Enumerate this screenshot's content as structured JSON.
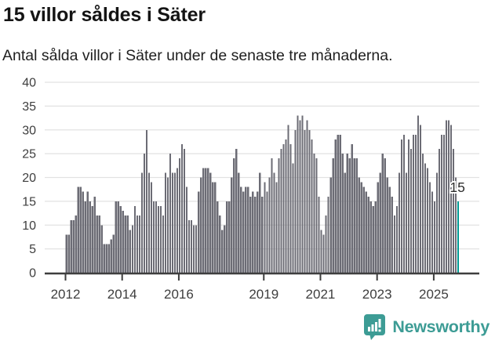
{
  "header": {
    "title": "15 villor såldes i Säter",
    "subtitle": "Antal sålda villor i Säter under de senaste tre månaderna."
  },
  "chart_data": {
    "type": "bar",
    "title": "15 villor såldes i Säter",
    "subtitle": "Antal sålda villor i Säter under de senaste tre månaderna.",
    "unit": "sålda villor per 3 månader",
    "frequency": "monthly",
    "start_label": "2012",
    "ylim": [
      0,
      40
    ],
    "y_ticks": [
      0,
      5,
      10,
      15,
      20,
      25,
      30,
      35,
      40
    ],
    "grid": true,
    "x_ticks": [
      {
        "label": "2012",
        "month_index": 0
      },
      {
        "label": "2014",
        "month_index": 24
      },
      {
        "label": "2016",
        "month_index": 48
      },
      {
        "label": "2019",
        "month_index": 84
      },
      {
        "label": "2021",
        "month_index": 108
      },
      {
        "label": "2023",
        "month_index": 132
      },
      {
        "label": "2025",
        "month_index": 156
      }
    ],
    "values": [
      8,
      8,
      11,
      11,
      12,
      18,
      18,
      17,
      15,
      17,
      15,
      14,
      16,
      12,
      12,
      10,
      6,
      6,
      6,
      7,
      8,
      15,
      15,
      14,
      13,
      12,
      12,
      9,
      10,
      14,
      12,
      12,
      21,
      25,
      30,
      21,
      19,
      15,
      15,
      14,
      14,
      12,
      21,
      20,
      25,
      21,
      21,
      22,
      24,
      27,
      26,
      18,
      11,
      11,
      10,
      10,
      17,
      20,
      22,
      22,
      22,
      21,
      19,
      19,
      15,
      12,
      9,
      10,
      15,
      15,
      20,
      24,
      26,
      21,
      18,
      17,
      18,
      18,
      16,
      17,
      16,
      17,
      21,
      16,
      19,
      17,
      20,
      24,
      21,
      19,
      24,
      26,
      27,
      28,
      31,
      27,
      23,
      30,
      33,
      32,
      33,
      30,
      32,
      30,
      28,
      25,
      24,
      16,
      9,
      8,
      12,
      16,
      20,
      24,
      28,
      29,
      29,
      25,
      21,
      25,
      24,
      27,
      24,
      24,
      20,
      19,
      18,
      17,
      16,
      15,
      14,
      15,
      19,
      21,
      25,
      24,
      20,
      18,
      16,
      12,
      14,
      21,
      28,
      29,
      21,
      28,
      26,
      29,
      29,
      33,
      31,
      25,
      23,
      22,
      19,
      17,
      15,
      21,
      26,
      29,
      29,
      32,
      32,
      31,
      26,
      20,
      15
    ],
    "highlight_last": true,
    "annotation": {
      "label": "15"
    },
    "colors": {
      "bar": "#6c6c75",
      "highlight": "#009a93",
      "grid": "#e2e2e2",
      "axis": "#3e3e3e",
      "tick_text": "#3e3e3e",
      "annotation_text": "#2e2e2e"
    }
  },
  "footer": {
    "brand": "Newsworthy",
    "logo_icon": "bar-chart-speech-bubble-icon",
    "brand_color": "#3d9c95",
    "logo_bubble_color": "#3d9c95",
    "logo_bars_color": "#ffffff"
  }
}
